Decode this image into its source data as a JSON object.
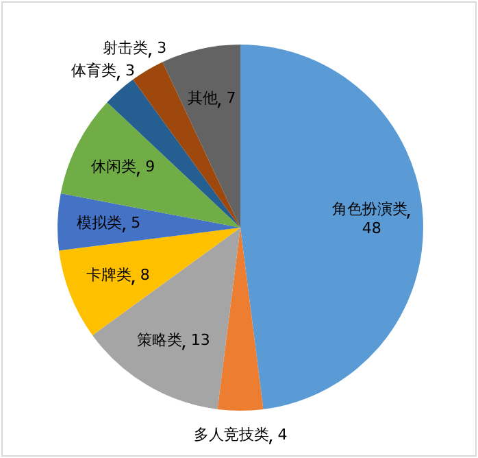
{
  "chart_data": {
    "type": "pie",
    "categories": [
      "角色扮演类",
      "多人竞技类",
      "策略类",
      "卡牌类",
      "模拟类",
      "休闲类",
      "体育类",
      "射击类",
      "其他"
    ],
    "values": [
      48,
      4,
      13,
      8,
      5,
      9,
      3,
      3,
      7
    ],
    "colors": [
      "#5b9bd5",
      "#ed7d31",
      "#a5a5a5",
      "#ffc000",
      "#4472c4",
      "#70ad47",
      "#255e91",
      "#9e480e",
      "#636363"
    ],
    "data_labels": true,
    "legend": false
  }
}
